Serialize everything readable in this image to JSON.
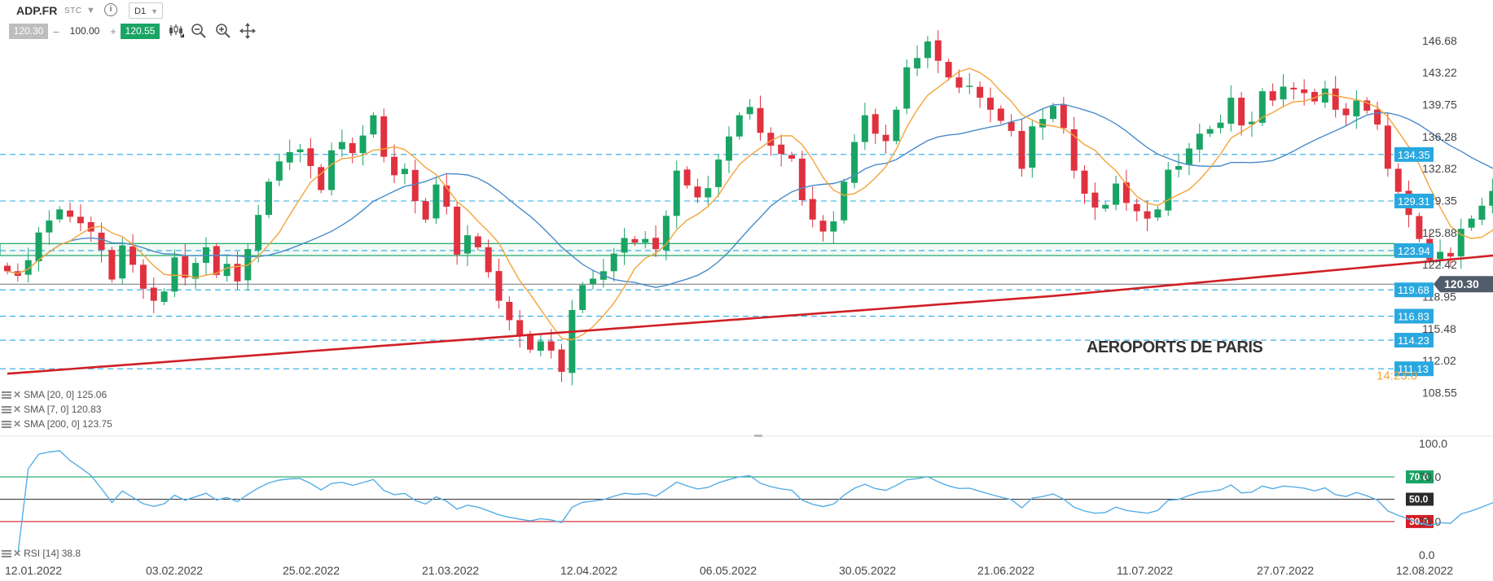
{
  "toolbar": {
    "symbol": "ADP.FR",
    "exchange": "STC",
    "info_icon": "info-icon",
    "timeframe": "D1",
    "bid": "120.30",
    "volume": "100.00",
    "ask": "120.55",
    "tools": [
      "candlestick-icon",
      "zoom-out-icon",
      "zoom-in-icon",
      "move-icon"
    ]
  },
  "indicators": [
    {
      "label": "SMA [20, 0] 125.06"
    },
    {
      "label": "SMA [7, 0] 120.83"
    },
    {
      "label": "SMA [200, 0] 123.75"
    }
  ],
  "rsi_label": "RSI [14] 38.8",
  "watermark": "AEROPORTS DE PARIS",
  "countdown": "14:23:0",
  "colors": {
    "up": "#1aa464",
    "down": "#e0313f",
    "sma20": "#4a8bc9",
    "sma7": "#f4a43a",
    "sma200": "#d01f25",
    "level": "#29a8e0",
    "price_tag": "#505c6a"
  },
  "chart_data": [
    {
      "type": "candlestick",
      "title": "",
      "y_ticks": [
        "146.68",
        "143.22",
        "139.75",
        "136.28",
        "132.82",
        "129.35",
        "125.88",
        "122.42",
        "118.95",
        "115.48",
        "112.02",
        "108.55"
      ],
      "ylim": [
        108.55,
        146.68
      ],
      "x_ticks": [
        "12.01.2022",
        "03.02.2022",
        "25.02.2022",
        "21.03.2022",
        "12.04.2022",
        "06.05.2022",
        "30.05.2022",
        "21.06.2022",
        "11.07.2022",
        "27.07.2022",
        "12.08.2022"
      ],
      "levels": [
        {
          "value": 134.35,
          "label": "134.35"
        },
        {
          "value": 129.31,
          "label": "129.31"
        },
        {
          "value": 123.94,
          "label": "123.94"
        },
        {
          "value": 119.68,
          "label": "119.68"
        },
        {
          "value": 116.83,
          "label": "116.83"
        },
        {
          "value": 114.23,
          "label": "114.23"
        },
        {
          "value": 111.13,
          "label": "111.13"
        }
      ],
      "support_zone": [
        123.4,
        124.7
      ],
      "last_price": {
        "value": 120.3,
        "label": "120.30"
      },
      "closes": [
        121.7,
        121.2,
        122.9,
        125.9,
        127.2,
        128.4,
        127.6,
        126.9,
        126.0,
        124.0,
        120.8,
        124.5,
        122.4,
        119.8,
        118.5,
        119.5,
        123.2,
        121.0,
        122.6,
        124.3,
        121.3,
        122.5,
        120.6,
        124.1,
        127.8,
        131.4,
        133.6,
        134.6,
        134.9,
        133.1,
        130.5,
        134.8,
        135.7,
        134.5,
        136.4,
        138.6,
        134.1,
        132.1,
        132.8,
        129.3,
        127.3,
        131.1,
        128.7,
        123.5,
        125.6,
        124.3,
        121.6,
        118.5,
        116.4,
        114.8,
        113.2,
        114.1,
        113.1,
        110.8,
        117.5,
        120.2,
        120.9,
        121.7,
        123.6,
        125.3,
        124.8,
        125.2,
        124.1,
        127.7,
        132.6,
        131.0,
        129.7,
        130.7,
        133.8,
        136.3,
        138.6,
        139.5,
        136.7,
        135.3,
        134.4,
        133.9,
        129.4,
        127.3,
        126.0,
        127.1,
        131.4,
        135.7,
        138.6,
        136.6,
        135.8,
        139.2,
        143.8,
        144.8,
        146.6,
        144.5,
        142.7,
        141.6,
        141.8,
        140.5,
        139.2,
        138.0,
        136.9,
        132.8,
        137.4,
        138.2,
        139.6,
        137.2,
        132.6,
        130.1,
        128.6,
        128.9,
        131.2,
        129.1,
        128.2,
        127.4,
        128.4,
        132.7,
        133.1,
        135.0,
        136.6,
        137.1,
        137.8,
        140.5,
        137.5,
        137.9,
        141.2,
        140.2,
        141.7,
        141.4,
        141.0,
        140.1,
        141.5,
        139.2,
        138.6,
        140.2,
        139.1,
        137.6,
        132.8,
        130.3,
        127.8,
        125.2,
        122.9,
        123.8,
        123.3,
        126.3,
        127.4,
        128.8,
        130.4,
        132.6,
        128.3,
        127.8,
        127.4,
        128.7,
        128.3,
        126.6,
        124.1,
        126.0,
        119.6,
        122.6,
        124.6,
        117.2,
        119.1,
        119.5,
        120.3
      ],
      "series": [
        {
          "name": "SMA [20, 0] 125.06"
        },
        {
          "name": "SMA [7, 0] 120.83"
        },
        {
          "name": "SMA [200, 0] 123.75"
        }
      ]
    },
    {
      "type": "line",
      "title": "",
      "y_ticks": [
        "100.0",
        "70.0",
        "30.0",
        "0.0"
      ],
      "ylim": [
        0,
        100
      ],
      "levels": [
        {
          "value": 70,
          "label": "70.0",
          "color": "#1aa464"
        },
        {
          "value": 50,
          "label": "50.0",
          "color": "#333333"
        },
        {
          "value": 30,
          "label": "30.0",
          "color": "#d01f25"
        }
      ],
      "series": [
        {
          "name": "RSI [14] 38.8"
        }
      ]
    }
  ]
}
